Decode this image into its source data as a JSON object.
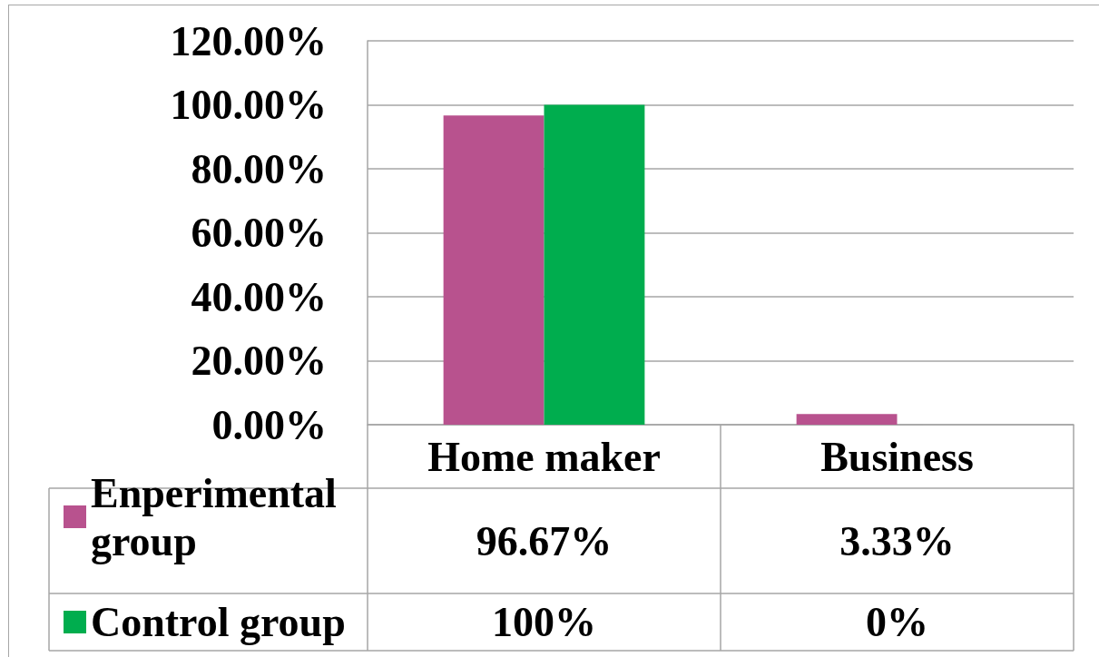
{
  "chart_data": {
    "type": "bar",
    "categories": [
      "Home maker",
      "Business"
    ],
    "series": [
      {
        "name": "Enperimental group",
        "color": "#b8528e",
        "values": [
          96.67,
          3.33
        ],
        "value_labels": [
          "96.67%",
          "3.33%"
        ]
      },
      {
        "name": "Control group",
        "color": "#00ad4e",
        "values": [
          100,
          0
        ],
        "value_labels": [
          "100%",
          "0%"
        ]
      }
    ],
    "ylim": [
      0,
      120
    ],
    "yticks": [
      {
        "value": 0,
        "label": "0.00%"
      },
      {
        "value": 20,
        "label": "20.00%"
      },
      {
        "value": 40,
        "label": "40.00%"
      },
      {
        "value": 60,
        "label": "60.00%"
      },
      {
        "value": 80,
        "label": "80.00%"
      },
      {
        "value": 100,
        "label": "100.00%"
      },
      {
        "value": 120,
        "label": "120.00%"
      }
    ],
    "grid": "y",
    "legend": "bottom left"
  }
}
